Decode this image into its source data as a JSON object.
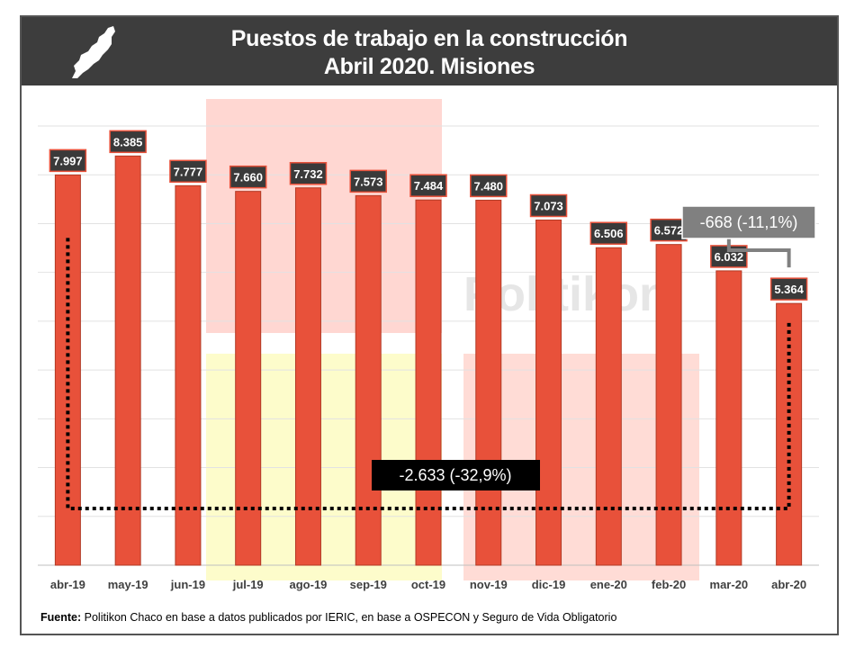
{
  "header": {
    "title_line1": "Puestos de trabajo en la construcción",
    "title_line2": "Abril 2020. Misiones"
  },
  "watermark": "Politikon",
  "source": {
    "label": "Fuente:",
    "text": "Politikon Chaco en base a datos publicados por IERIC, en base a OSPECON y Seguro de Vida Obligatorio"
  },
  "colors": {
    "bar": "#e8513a",
    "bar_stroke": "#b23a25",
    "label_bg": "#3a3a3a",
    "header_bg": "#3d3d3d",
    "annotation_gray": "#808080",
    "annotation_black": "#000000"
  },
  "chart_data": {
    "type": "bar",
    "categories": [
      "abr-19",
      "may-19",
      "jun-19",
      "jul-19",
      "ago-19",
      "sep-19",
      "oct-19",
      "nov-19",
      "dic-19",
      "ene-20",
      "feb-20",
      "mar-20",
      "abr-20"
    ],
    "values": [
      7997,
      8385,
      7777,
      7660,
      7732,
      7573,
      7484,
      7480,
      7073,
      6506,
      6572,
      6032,
      5364
    ],
    "value_labels": [
      "7.997",
      "8.385",
      "7.777",
      "7.660",
      "7.732",
      "7.573",
      "7.484",
      "7.480",
      "7.073",
      "6.506",
      "6.572",
      "6.032",
      "5.364"
    ],
    "ylim": [
      0,
      9000
    ],
    "grid": true,
    "annotations": [
      {
        "text": "-668 (-11,1%)",
        "from": "mar-20",
        "to": "abr-20",
        "style": "gray-box"
      },
      {
        "text": "-2.633 (-32,9%)",
        "from": "abr-19",
        "to": "abr-20",
        "style": "black-box"
      }
    ]
  }
}
